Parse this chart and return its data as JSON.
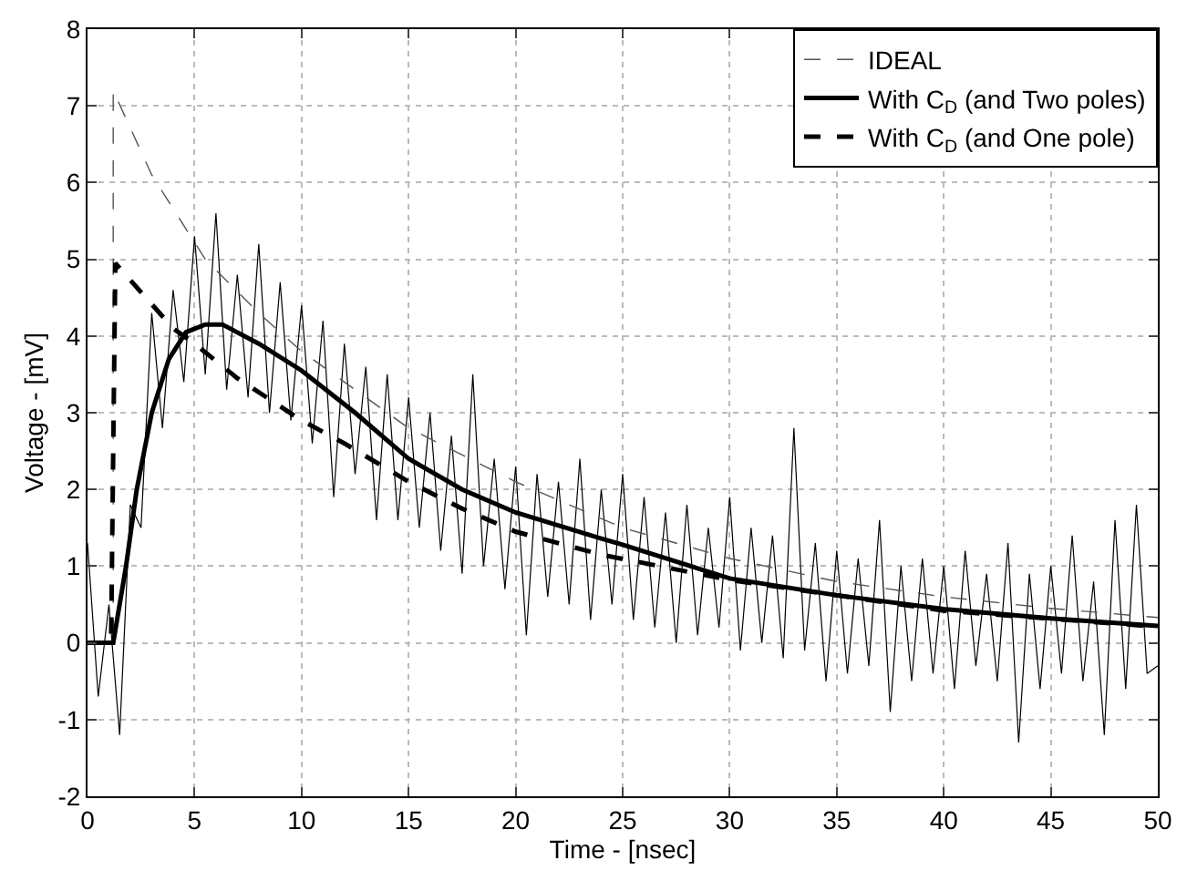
{
  "chart_data": {
    "type": "line",
    "xlabel": "Time - [nsec]",
    "ylabel": "Voltage - [mV]",
    "xlim": [
      0,
      50
    ],
    "xticks": [
      0,
      5,
      10,
      15,
      20,
      25,
      30,
      35,
      40,
      45,
      50
    ],
    "ylim": [
      -2,
      8
    ],
    "yticks": [
      -2,
      -1,
      0,
      1,
      2,
      3,
      4,
      5,
      6,
      7,
      8
    ],
    "grid": true,
    "legend": "top right",
    "series": [
      {
        "color": "#000000",
        "line_style": "solid",
        "x": [
          0,
          0.5,
          1,
          1.5,
          2,
          2.5,
          3,
          3.5,
          4,
          4.5,
          5,
          5.5,
          6,
          6.5,
          7,
          7.5,
          8,
          8.5,
          9,
          9.5,
          10,
          10.5,
          11,
          11.5,
          12,
          12.5,
          13,
          13.5,
          14,
          14.5,
          15,
          15.5,
          16,
          16.5,
          17,
          17.5,
          18,
          18.5,
          19,
          19.5,
          20,
          20.5,
          21,
          21.5,
          22,
          22.5,
          23,
          23.5,
          24,
          24.5,
          25,
          25.5,
          26,
          26.5,
          27,
          27.5,
          28,
          28.5,
          29,
          29.5,
          30,
          30.5,
          31,
          31.5,
          32,
          32.5,
          33,
          33.5,
          34,
          34.5,
          35,
          35.5,
          36,
          36.5,
          37,
          37.5,
          38,
          38.5,
          39,
          39.5,
          40,
          40.5,
          41,
          41.5,
          42,
          42.5,
          43,
          43.5,
          44,
          44.5,
          45,
          45.5,
          46,
          46.5,
          47,
          47.5,
          48,
          48.5,
          49,
          49.5,
          50
        ],
        "values": [
          1.3,
          -0.7,
          0.5,
          -1.2,
          1.8,
          1.5,
          4.3,
          2.8,
          4.6,
          3.4,
          5.3,
          3.5,
          5.6,
          3.3,
          4.8,
          3.2,
          5.2,
          3.0,
          4.7,
          2.9,
          4.4,
          2.6,
          4.2,
          1.9,
          3.9,
          2.2,
          3.6,
          1.6,
          3.5,
          1.6,
          3.2,
          1.5,
          3.0,
          1.2,
          2.7,
          0.9,
          3.5,
          1.0,
          2.4,
          0.7,
          2.3,
          0.1,
          2.2,
          0.6,
          2.1,
          0.5,
          2.4,
          0.3,
          2.0,
          0.5,
          2.2,
          0.3,
          1.9,
          0.2,
          1.7,
          0.0,
          1.8,
          0.1,
          1.5,
          0.2,
          1.9,
          -0.1,
          1.5,
          0.0,
          1.4,
          -0.2,
          2.8,
          -0.1,
          1.3,
          -0.5,
          1.2,
          -0.4,
          1.1,
          -0.3,
          1.6,
          -0.9,
          1.0,
          -0.5,
          1.1,
          -0.4,
          1.0,
          -0.6,
          1.2,
          -0.3,
          0.9,
          -0.5,
          1.3,
          -1.3,
          0.9,
          -0.6,
          1.0,
          -0.4,
          1.4,
          -0.5,
          0.8,
          -1.2,
          1.6,
          -0.6,
          1.8,
          -0.4,
          -0.3
        ]
      },
      {
        "name": "IDEAL",
        "color": "#555555",
        "line_style": "dashed",
        "x": [
          0,
          1.2,
          1.2,
          3,
          5.5,
          8,
          10,
          15,
          20,
          25,
          30,
          35,
          40,
          45,
          50
        ],
        "values": [
          0,
          0,
          7.2,
          6.1,
          5.0,
          4.3,
          3.8,
          2.8,
          2.1,
          1.5,
          1.1,
          0.8,
          0.6,
          0.45,
          0.33
        ]
      },
      {
        "name": "With C$_{D}$ (and Two poles)",
        "color": "#000000",
        "line_style": "solid",
        "x": [
          0,
          1.2,
          1.8,
          2.3,
          3,
          3.8,
          4.6,
          5.5,
          6.3,
          8,
          10,
          12.5,
          15,
          17.5,
          20,
          24,
          25,
          30,
          35,
          40,
          45,
          50
        ],
        "values": [
          0,
          0,
          1,
          2,
          3,
          3.7,
          4.05,
          4.15,
          4.15,
          3.9,
          3.55,
          3.0,
          2.4,
          2.0,
          1.7,
          1.36,
          1.28,
          0.84,
          0.62,
          0.44,
          0.32,
          0.22
        ]
      },
      {
        "name": "With C$_{D}$ (and One pole)",
        "color": "#000000",
        "line_style": "dashed",
        "x": [
          0,
          1.1,
          1.3,
          4,
          5,
          7,
          10,
          12,
          15,
          17.5,
          20,
          24,
          30,
          40,
          50
        ],
        "values": [
          0,
          0,
          4.95,
          4.1,
          3.9,
          3.45,
          2.9,
          2.6,
          2.1,
          1.75,
          1.45,
          1.15,
          0.82,
          0.42,
          0.21
        ]
      }
    ]
  }
}
